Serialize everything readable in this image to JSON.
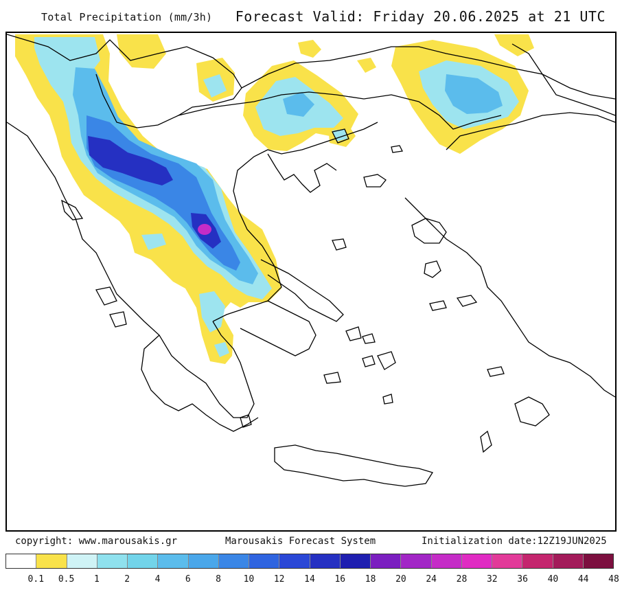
{
  "header": {
    "title": "Total Precipitation (mm/3h)",
    "forecast_valid": "Forecast Valid:  Friday 20.06.2025 at 21 UTC"
  },
  "footer": {
    "copyright": "copyright: www.marousakis.gr",
    "system": "Marousakis Forecast System",
    "init": "Initialization date:12Z19JUN2025"
  },
  "legend": {
    "labels": [
      "0.1",
      "0.5",
      "1",
      "2",
      "4",
      "6",
      "8",
      "10",
      "12",
      "14",
      "16",
      "18",
      "20",
      "24",
      "28",
      "32",
      "36",
      "40",
      "44",
      "48"
    ],
    "colors": [
      "#ffffff",
      "#f9e24a",
      "#cff3f6",
      "#8fe1ee",
      "#72d4ea",
      "#5bbcec",
      "#4aa7ea",
      "#3a86e6",
      "#2f64e0",
      "#2a47d6",
      "#2530c2",
      "#1f1fb0",
      "#7b1fc0",
      "#a226c6",
      "#c52cc7",
      "#e02bc3",
      "#e23a99",
      "#c4256e",
      "#a31b5a",
      "#7c0f3f"
    ]
  },
  "map": {
    "region": "Greece",
    "colors": {
      "yellow": "#f9e24a",
      "light": "#9de4ef",
      "mid": "#5bbcec",
      "blue": "#3a86e6",
      "deep": "#2530c2",
      "magenta": "#c52cc7"
    }
  }
}
